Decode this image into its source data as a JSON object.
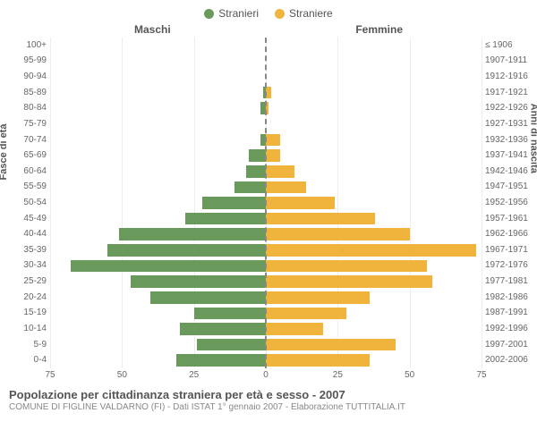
{
  "legend": {
    "male": {
      "label": "Stranieri",
      "color": "#6a9a5b"
    },
    "female": {
      "label": "Straniere",
      "color": "#f0b43c"
    }
  },
  "headers": {
    "left": "Maschi",
    "right": "Femmine"
  },
  "axis_titles": {
    "left": "Fasce di età",
    "right": "Anni di nascita"
  },
  "chart": {
    "type": "population-pyramid",
    "x_max": 75,
    "x_ticks": [
      75,
      50,
      25,
      0,
      25,
      50,
      75
    ],
    "grid_positions_pct": [
      0,
      16.67,
      33.33,
      50,
      66.67,
      83.33,
      100
    ],
    "bar_colors": {
      "male": "#6a9a5b",
      "female": "#f0b43c"
    },
    "background": "#ffffff",
    "rows": [
      {
        "age": "100+",
        "birth": "≤ 1906",
        "male": 0,
        "female": 0
      },
      {
        "age": "95-99",
        "birth": "1907-1911",
        "male": 0,
        "female": 0
      },
      {
        "age": "90-94",
        "birth": "1912-1916",
        "male": 0,
        "female": 0
      },
      {
        "age": "85-89",
        "birth": "1917-1921",
        "male": 1,
        "female": 2
      },
      {
        "age": "80-84",
        "birth": "1922-1926",
        "male": 2,
        "female": 1
      },
      {
        "age": "75-79",
        "birth": "1927-1931",
        "male": 0,
        "female": 0
      },
      {
        "age": "70-74",
        "birth": "1932-1936",
        "male": 2,
        "female": 5
      },
      {
        "age": "65-69",
        "birth": "1937-1941",
        "male": 6,
        "female": 5
      },
      {
        "age": "60-64",
        "birth": "1942-1946",
        "male": 7,
        "female": 10
      },
      {
        "age": "55-59",
        "birth": "1947-1951",
        "male": 11,
        "female": 14
      },
      {
        "age": "50-54",
        "birth": "1952-1956",
        "male": 22,
        "female": 24
      },
      {
        "age": "45-49",
        "birth": "1957-1961",
        "male": 28,
        "female": 38
      },
      {
        "age": "40-44",
        "birth": "1962-1966",
        "male": 51,
        "female": 50
      },
      {
        "age": "35-39",
        "birth": "1967-1971",
        "male": 55,
        "female": 73
      },
      {
        "age": "30-34",
        "birth": "1972-1976",
        "male": 68,
        "female": 56
      },
      {
        "age": "25-29",
        "birth": "1977-1981",
        "male": 47,
        "female": 58
      },
      {
        "age": "20-24",
        "birth": "1982-1986",
        "male": 40,
        "female": 36
      },
      {
        "age": "15-19",
        "birth": "1987-1991",
        "male": 25,
        "female": 28
      },
      {
        "age": "10-14",
        "birth": "1992-1996",
        "male": 30,
        "female": 20
      },
      {
        "age": "5-9",
        "birth": "1997-2001",
        "male": 24,
        "female": 45
      },
      {
        "age": "0-4",
        "birth": "2002-2006",
        "male": 31,
        "female": 36
      }
    ]
  },
  "footer": {
    "title": "Popolazione per cittadinanza straniera per età e sesso - 2007",
    "subtitle": "COMUNE DI FIGLINE VALDARNO (FI) - Dati ISTAT 1° gennaio 2007 - Elaborazione TUTTITALIA.IT"
  }
}
